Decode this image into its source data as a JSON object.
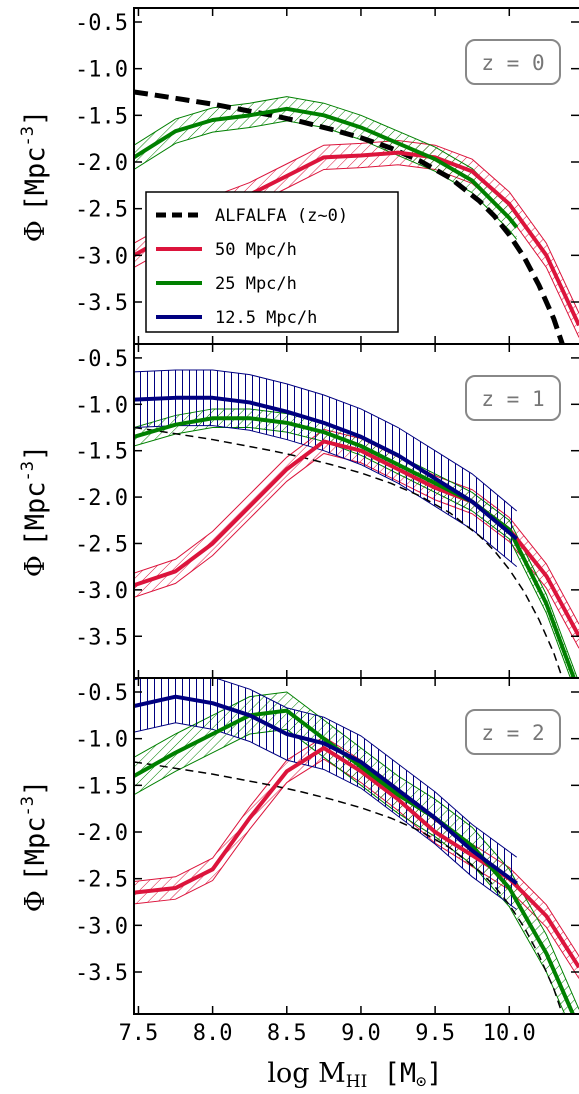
{
  "chart_data": {
    "type": "line",
    "xlim": [
      7.47,
      10.47
    ],
    "ylim": [
      -3.95,
      -0.35
    ],
    "xticks": [
      7.5,
      8.0,
      8.5,
      9.0,
      9.5,
      10.0
    ],
    "xtick_labels": [
      "7.5",
      "8.0",
      "8.5",
      "9.0",
      "9.5",
      "10.0"
    ],
    "yticks": [
      -0.5,
      -1.0,
      -1.5,
      -2.0,
      -2.5,
      -3.0,
      -3.5
    ],
    "ytick_labels": [
      "-0.5",
      "-1.0",
      "-1.5",
      "-2.0",
      "-2.5",
      "-3.0",
      "-3.5"
    ],
    "xlabel": {
      "pre": "log M",
      "sub": "HI",
      "post": " [M",
      "sub2": "⊙",
      "close": "]"
    },
    "ylabel": {
      "phi": "Φ",
      "unit": "[Mpc",
      "sup": "-3",
      "close": "]"
    },
    "legend": {
      "location": "lower-left of top panel",
      "entries": [
        {
          "label": "ALFALFA (z~0)",
          "color": "#000000",
          "style": "dashed"
        },
        {
          "label": "50 Mpc/h",
          "color": "#dc143c",
          "style": "solid"
        },
        {
          "label": "25 Mpc/h",
          "color": "#008000",
          "style": "solid"
        },
        {
          "label": "12.5 Mpc/h",
          "color": "#000080",
          "style": "solid"
        }
      ]
    },
    "alfalfa": {
      "x": [
        7.47,
        7.6,
        7.8,
        8.0,
        8.2,
        8.4,
        8.6,
        8.8,
        9.0,
        9.2,
        9.4,
        9.6,
        9.8,
        9.9,
        10.0,
        10.1,
        10.2,
        10.3,
        10.4
      ],
      "y": [
        -1.25,
        -1.28,
        -1.33,
        -1.38,
        -1.44,
        -1.5,
        -1.57,
        -1.65,
        -1.74,
        -1.85,
        -1.99,
        -2.17,
        -2.42,
        -2.58,
        -2.78,
        -3.02,
        -3.32,
        -3.68,
        -4.15
      ]
    },
    "panels": [
      {
        "label": "z = 0",
        "alfalfa_style": "thick",
        "series": [
          {
            "name": "50 Mpc/h",
            "color": "#dc143c",
            "x": [
              7.47,
              7.75,
              8.0,
              8.25,
              8.5,
              8.75,
              9.0,
              9.25,
              9.5,
              9.75,
              10.0,
              10.25,
              10.47
            ],
            "y": [
              -3.0,
              -2.75,
              -2.5,
              -2.35,
              -2.15,
              -1.95,
              -1.93,
              -1.9,
              -1.95,
              -2.1,
              -2.45,
              -3.0,
              -3.75
            ],
            "band": 0.13
          },
          {
            "name": "25 Mpc/h",
            "color": "#008000",
            "x": [
              7.47,
              7.75,
              8.0,
              8.25,
              8.5,
              8.75,
              9.0,
              9.25,
              9.5,
              9.75,
              10.0,
              10.05
            ],
            "y": [
              -1.95,
              -1.67,
              -1.55,
              -1.5,
              -1.43,
              -1.5,
              -1.63,
              -1.8,
              -1.97,
              -2.2,
              -2.6,
              -2.7
            ],
            "band": 0.13
          }
        ]
      },
      {
        "label": "z = 1",
        "alfalfa_style": "thin",
        "series": [
          {
            "name": "50 Mpc/h",
            "color": "#dc143c",
            "x": [
              7.47,
              7.75,
              8.0,
              8.25,
              8.5,
              8.75,
              9.0,
              9.25,
              9.5,
              9.75,
              10.0,
              10.25,
              10.47
            ],
            "y": [
              -2.95,
              -2.8,
              -2.5,
              -2.1,
              -1.7,
              -1.4,
              -1.5,
              -1.7,
              -1.9,
              -2.05,
              -2.35,
              -2.85,
              -3.5
            ],
            "band": 0.13
          },
          {
            "name": "25 Mpc/h",
            "color": "#008000",
            "x": [
              7.47,
              7.75,
              8.0,
              8.25,
              8.5,
              8.75,
              9.0,
              9.25,
              9.5,
              9.75,
              10.0,
              10.25,
              10.47
            ],
            "y": [
              -1.35,
              -1.22,
              -1.15,
              -1.15,
              -1.2,
              -1.3,
              -1.45,
              -1.65,
              -1.85,
              -2.05,
              -2.35,
              -3.15,
              -4.1
            ],
            "band": 0.1
          },
          {
            "name": "12.5 Mpc/h",
            "color": "#000080",
            "x": [
              7.47,
              7.75,
              8.0,
              8.25,
              8.5,
              8.75,
              9.0,
              9.25,
              9.5,
              9.75,
              10.05
            ],
            "y": [
              -0.95,
              -0.93,
              -0.93,
              -0.98,
              -1.08,
              -1.2,
              -1.35,
              -1.55,
              -1.8,
              -2.05,
              -2.45
            ],
            "band": 0.3
          }
        ]
      },
      {
        "label": "z = 2",
        "alfalfa_style": "thin",
        "series": [
          {
            "name": "50 Mpc/h",
            "color": "#dc143c",
            "x": [
              7.47,
              7.75,
              8.0,
              8.25,
              8.5,
              8.75,
              9.0,
              9.25,
              9.5,
              9.75,
              10.0,
              10.25,
              10.47
            ],
            "y": [
              -2.65,
              -2.6,
              -2.4,
              -1.85,
              -1.35,
              -1.1,
              -1.35,
              -1.65,
              -2.0,
              -2.25,
              -2.5,
              -2.9,
              -3.45
            ],
            "band": 0.12
          },
          {
            "name": "25 Mpc/h",
            "color": "#008000",
            "x": [
              7.47,
              7.75,
              8.0,
              8.25,
              8.5,
              8.75,
              9.0,
              9.25,
              9.5,
              9.75,
              10.0,
              10.25,
              10.47
            ],
            "y": [
              -1.4,
              -1.15,
              -0.95,
              -0.75,
              -0.7,
              -1.0,
              -1.3,
              -1.6,
              -1.85,
              -2.15,
              -2.6,
              -3.3,
              -4.1
            ],
            "band": 0.2
          },
          {
            "name": "12.5 Mpc/h",
            "color": "#000080",
            "x": [
              7.47,
              7.75,
              8.0,
              8.25,
              8.5,
              8.75,
              9.0,
              9.25,
              9.5,
              9.75,
              10.05
            ],
            "y": [
              -0.65,
              -0.55,
              -0.62,
              -0.75,
              -0.95,
              -1.05,
              -1.25,
              -1.55,
              -1.85,
              -2.2,
              -2.55
            ],
            "band": 0.28
          }
        ]
      }
    ]
  }
}
